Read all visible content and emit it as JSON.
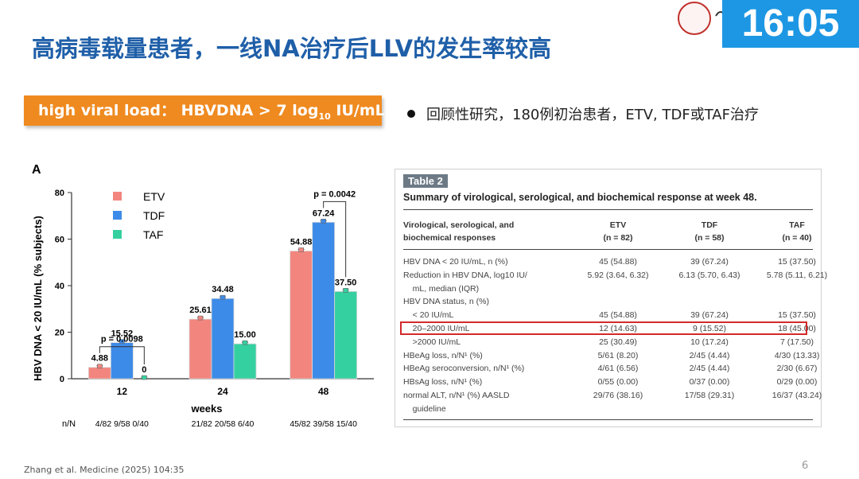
{
  "slide": {
    "title": "高病毒载量患者，一线NA治疗后LLV的发生率较高",
    "clock": "16:05",
    "banner_text": "high viral load： HBVDNA > 7 log",
    "banner_sub": "10",
    "banner_tail": " IU/mL",
    "bullet": "回顾性研究，180例初治患者，ETV, TDF或TAF治疗",
    "footer": "Zhang et al. Medicine (2025) 104:35",
    "page_number": "6"
  },
  "chart_data": {
    "type": "bar",
    "panel_label": "A",
    "categories": [
      "12",
      "24",
      "48"
    ],
    "series": [
      {
        "name": "ETV",
        "color": "#f2867f",
        "values": [
          4.88,
          25.61,
          54.88
        ],
        "labels": [
          "4.88",
          "25.61",
          "54.88"
        ]
      },
      {
        "name": "TDF",
        "color": "#3d8be8",
        "values": [
          15.52,
          34.48,
          67.24
        ],
        "labels": [
          "15.52",
          "34.48",
          "67.24"
        ]
      },
      {
        "name": "TAF",
        "color": "#35d0a0",
        "values": [
          0,
          15.0,
          37.5
        ],
        "labels": [
          "0",
          "15.00",
          "37.50"
        ]
      }
    ],
    "xlabel": "weeks",
    "ylabel": "HBV DNA < 20 IU/mL (% subjects)",
    "ylim": [
      0,
      80
    ],
    "yticks": [
      "0",
      "20",
      "40",
      "60",
      "80"
    ],
    "annotations": [
      {
        "text": "p = 0.0098",
        "category": "12",
        "from": "ETV",
        "to": "TAF"
      },
      {
        "text": "p = 0.0042",
        "category": "48",
        "from": "TDF",
        "to": "TAF"
      }
    ],
    "nN_label": "n/N",
    "nN": [
      "4/82 9/58 0/40",
      "21/82 20/58 6/40",
      "45/82 39/58 15/40"
    ],
    "legend_position": "top-left"
  },
  "table": {
    "label": "Table 2",
    "caption": "Summary of virological, serological, and biochemical response at week 48.",
    "header": {
      "c0_line1": "Virological, serological, and",
      "c0_line2": "biochemical responses",
      "etv_line1": "ETV",
      "etv_line2": "(n = 82)",
      "tdf_line1": "TDF",
      "tdf_line2": "(n = 58)",
      "taf_line1": "TAF",
      "taf_line2": "(n = 40)"
    },
    "rows": [
      {
        "c0": "HBV DNA < 20 IU/mL, n (%)",
        "c1": "45 (54.88)",
        "c2": "39 (67.24)",
        "c3": "15 (37.50)"
      },
      {
        "c0": "Reduction in HBV DNA, log10 IU/",
        "c1": "5.92 (3.64, 6.32)",
        "c2": "6.13 (5.70, 6.43)",
        "c3": "5.78 (5.11, 6.21)"
      },
      {
        "c0": "    mL, median (IQR)",
        "c1": "",
        "c2": "",
        "c3": ""
      },
      {
        "c0": "HBV DNA status, n (%)",
        "c1": "",
        "c2": "",
        "c3": ""
      },
      {
        "c0": "    < 20 IU/mL",
        "c1": "45 (54.88)",
        "c2": "39 (67.24)",
        "c3": "15 (37.50)"
      },
      {
        "c0": "    20–2000 IU/mL",
        "c1": "12 (14.63)",
        "c2": "9 (15.52)",
        "c3": "18 (45.00)"
      },
      {
        "c0": "    >2000 IU/mL",
        "c1": "25 (30.49)",
        "c2": "10 (17.24)",
        "c3": "7 (17.50)"
      },
      {
        "c0": "HBeAg loss, n/N¹ (%)",
        "c1": "5/61 (8.20)",
        "c2": "2/45 (4.44)",
        "c3": "4/30 (13.33)"
      },
      {
        "c0": "HBeAg seroconversion, n/N¹ (%)",
        "c1": "4/61 (6.56)",
        "c2": "2/45 (4.44)",
        "c3": "2/30 (6.67)"
      },
      {
        "c0": "HBsAg loss, n/N¹ (%)",
        "c1": "0/55 (0.00)",
        "c2": "0/37 (0.00)",
        "c3": "0/29 (0.00)"
      },
      {
        "c0": "normal ALT, n/N¹ (%) AASLD",
        "c1": "29/76 (38.16)",
        "c2": "17/58 (29.31)",
        "c3": "16/37 (43.24)"
      },
      {
        "c0": "    guideline",
        "c1": "",
        "c2": "",
        "c3": ""
      }
    ]
  }
}
